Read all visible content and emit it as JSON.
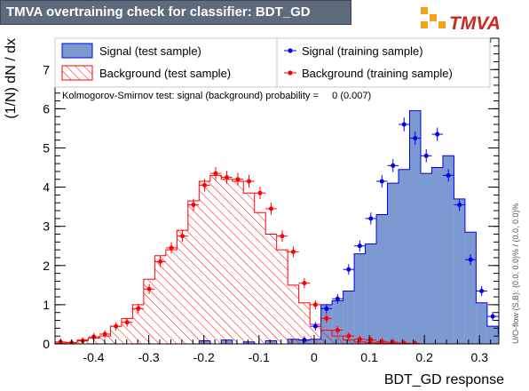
{
  "header": {
    "title": "TMVA overtraining check for classifier: BDT_GD",
    "logo_text": "TMVA"
  },
  "colors": {
    "signal_fill": "#7d99d1",
    "signal_line": "#0000ee",
    "background_line": "#ff0000",
    "title_bg": "#5d6b7d",
    "logo_orange": "#f7a21b"
  },
  "legend": {
    "signal_test": "Signal (test sample)",
    "background_test": "Background (test sample)",
    "signal_train": "Signal (training sample)",
    "background_train": "Background (training sample)"
  },
  "ks_text": "Kolmogorov-Smirnov test: signal (background) probability =     0 (0.007)",
  "side_note": "U/O-flow (S,B): (0.0, 0.0)% / (0.0, 0.0)%",
  "chart_data": {
    "type": "histogram",
    "xlabel": "BDT_GD response",
    "ylabel": "(1/N) dN / dx",
    "xlim": [
      -0.47,
      0.335
    ],
    "ylim": [
      0,
      7.8
    ],
    "xticks": [
      -0.4,
      -0.3,
      -0.2,
      -0.1,
      0,
      0.1,
      0.2,
      0.3
    ],
    "xtick_labels": [
      "-0.4",
      "-0.3",
      "-0.2",
      "-0.1",
      "0",
      "0.1",
      "0.2",
      "0.3"
    ],
    "yticks": [
      0,
      1,
      2,
      3,
      4,
      5,
      6,
      7
    ],
    "ytick_labels": [
      "0",
      "1",
      "2",
      "3",
      "4",
      "5",
      "6",
      "7"
    ],
    "bin_edges_start": -0.47,
    "bin_width": 0.0201,
    "series": [
      {
        "name": "Signal (test sample)",
        "style": "filled-histogram",
        "values": [
          0,
          0,
          0,
          0,
          0,
          0,
          0,
          0,
          0,
          0,
          0,
          0,
          0,
          0.08,
          0,
          0.1,
          0,
          0.05,
          0,
          0.08,
          0,
          0.12,
          0.1,
          0.12,
          1.0,
          1.1,
          1.35,
          2.3,
          2.55,
          3.3,
          4.1,
          4.45,
          5.95,
          4.35,
          4.5,
          4.8,
          3.7,
          2.85,
          1.05,
          0.45,
          0.25,
          0
        ]
      },
      {
        "name": "Background (test sample)",
        "style": "hatched-histogram",
        "values": [
          0.02,
          0.03,
          0.1,
          0.15,
          0.2,
          0.45,
          0.65,
          1.0,
          1.65,
          2.25,
          2.4,
          2.9,
          3.65,
          4.15,
          4.3,
          4.2,
          4.15,
          3.85,
          3.35,
          2.8,
          2.4,
          1.5,
          1.05,
          0.5,
          0.35,
          0.2,
          0.1,
          0.05,
          0.03,
          0.02,
          0.01,
          0,
          0,
          0,
          0,
          0,
          0,
          0,
          0,
          0,
          0,
          0
        ]
      },
      {
        "name": "Signal (training sample)",
        "style": "points",
        "values": [
          0,
          0,
          0,
          0,
          0,
          0,
          0,
          0,
          0,
          0,
          0,
          0,
          0,
          0,
          0,
          0,
          0,
          0,
          0,
          0,
          0,
          0,
          0.1,
          0.45,
          0.9,
          1.15,
          1.9,
          2.5,
          3.2,
          4.15,
          4.55,
          5.6,
          5.25,
          4.8,
          5.35,
          4.3,
          3.55,
          2.15,
          1.35,
          0.7,
          0.45,
          0.15
        ]
      },
      {
        "name": "Background (training sample)",
        "style": "points",
        "values": [
          0.05,
          0.03,
          0.08,
          0.18,
          0.25,
          0.45,
          0.55,
          0.9,
          1.4,
          2.1,
          2.45,
          2.75,
          3.55,
          4.05,
          4.35,
          4.25,
          4.2,
          4.15,
          3.85,
          3.45,
          2.75,
          2.35,
          1.55,
          1.0,
          0.65,
          0.35,
          0.2,
          0.12,
          0.1,
          0.06,
          0.04,
          0.02,
          0.01,
          0,
          0,
          0,
          0,
          0,
          0,
          0,
          0,
          0
        ]
      }
    ]
  }
}
